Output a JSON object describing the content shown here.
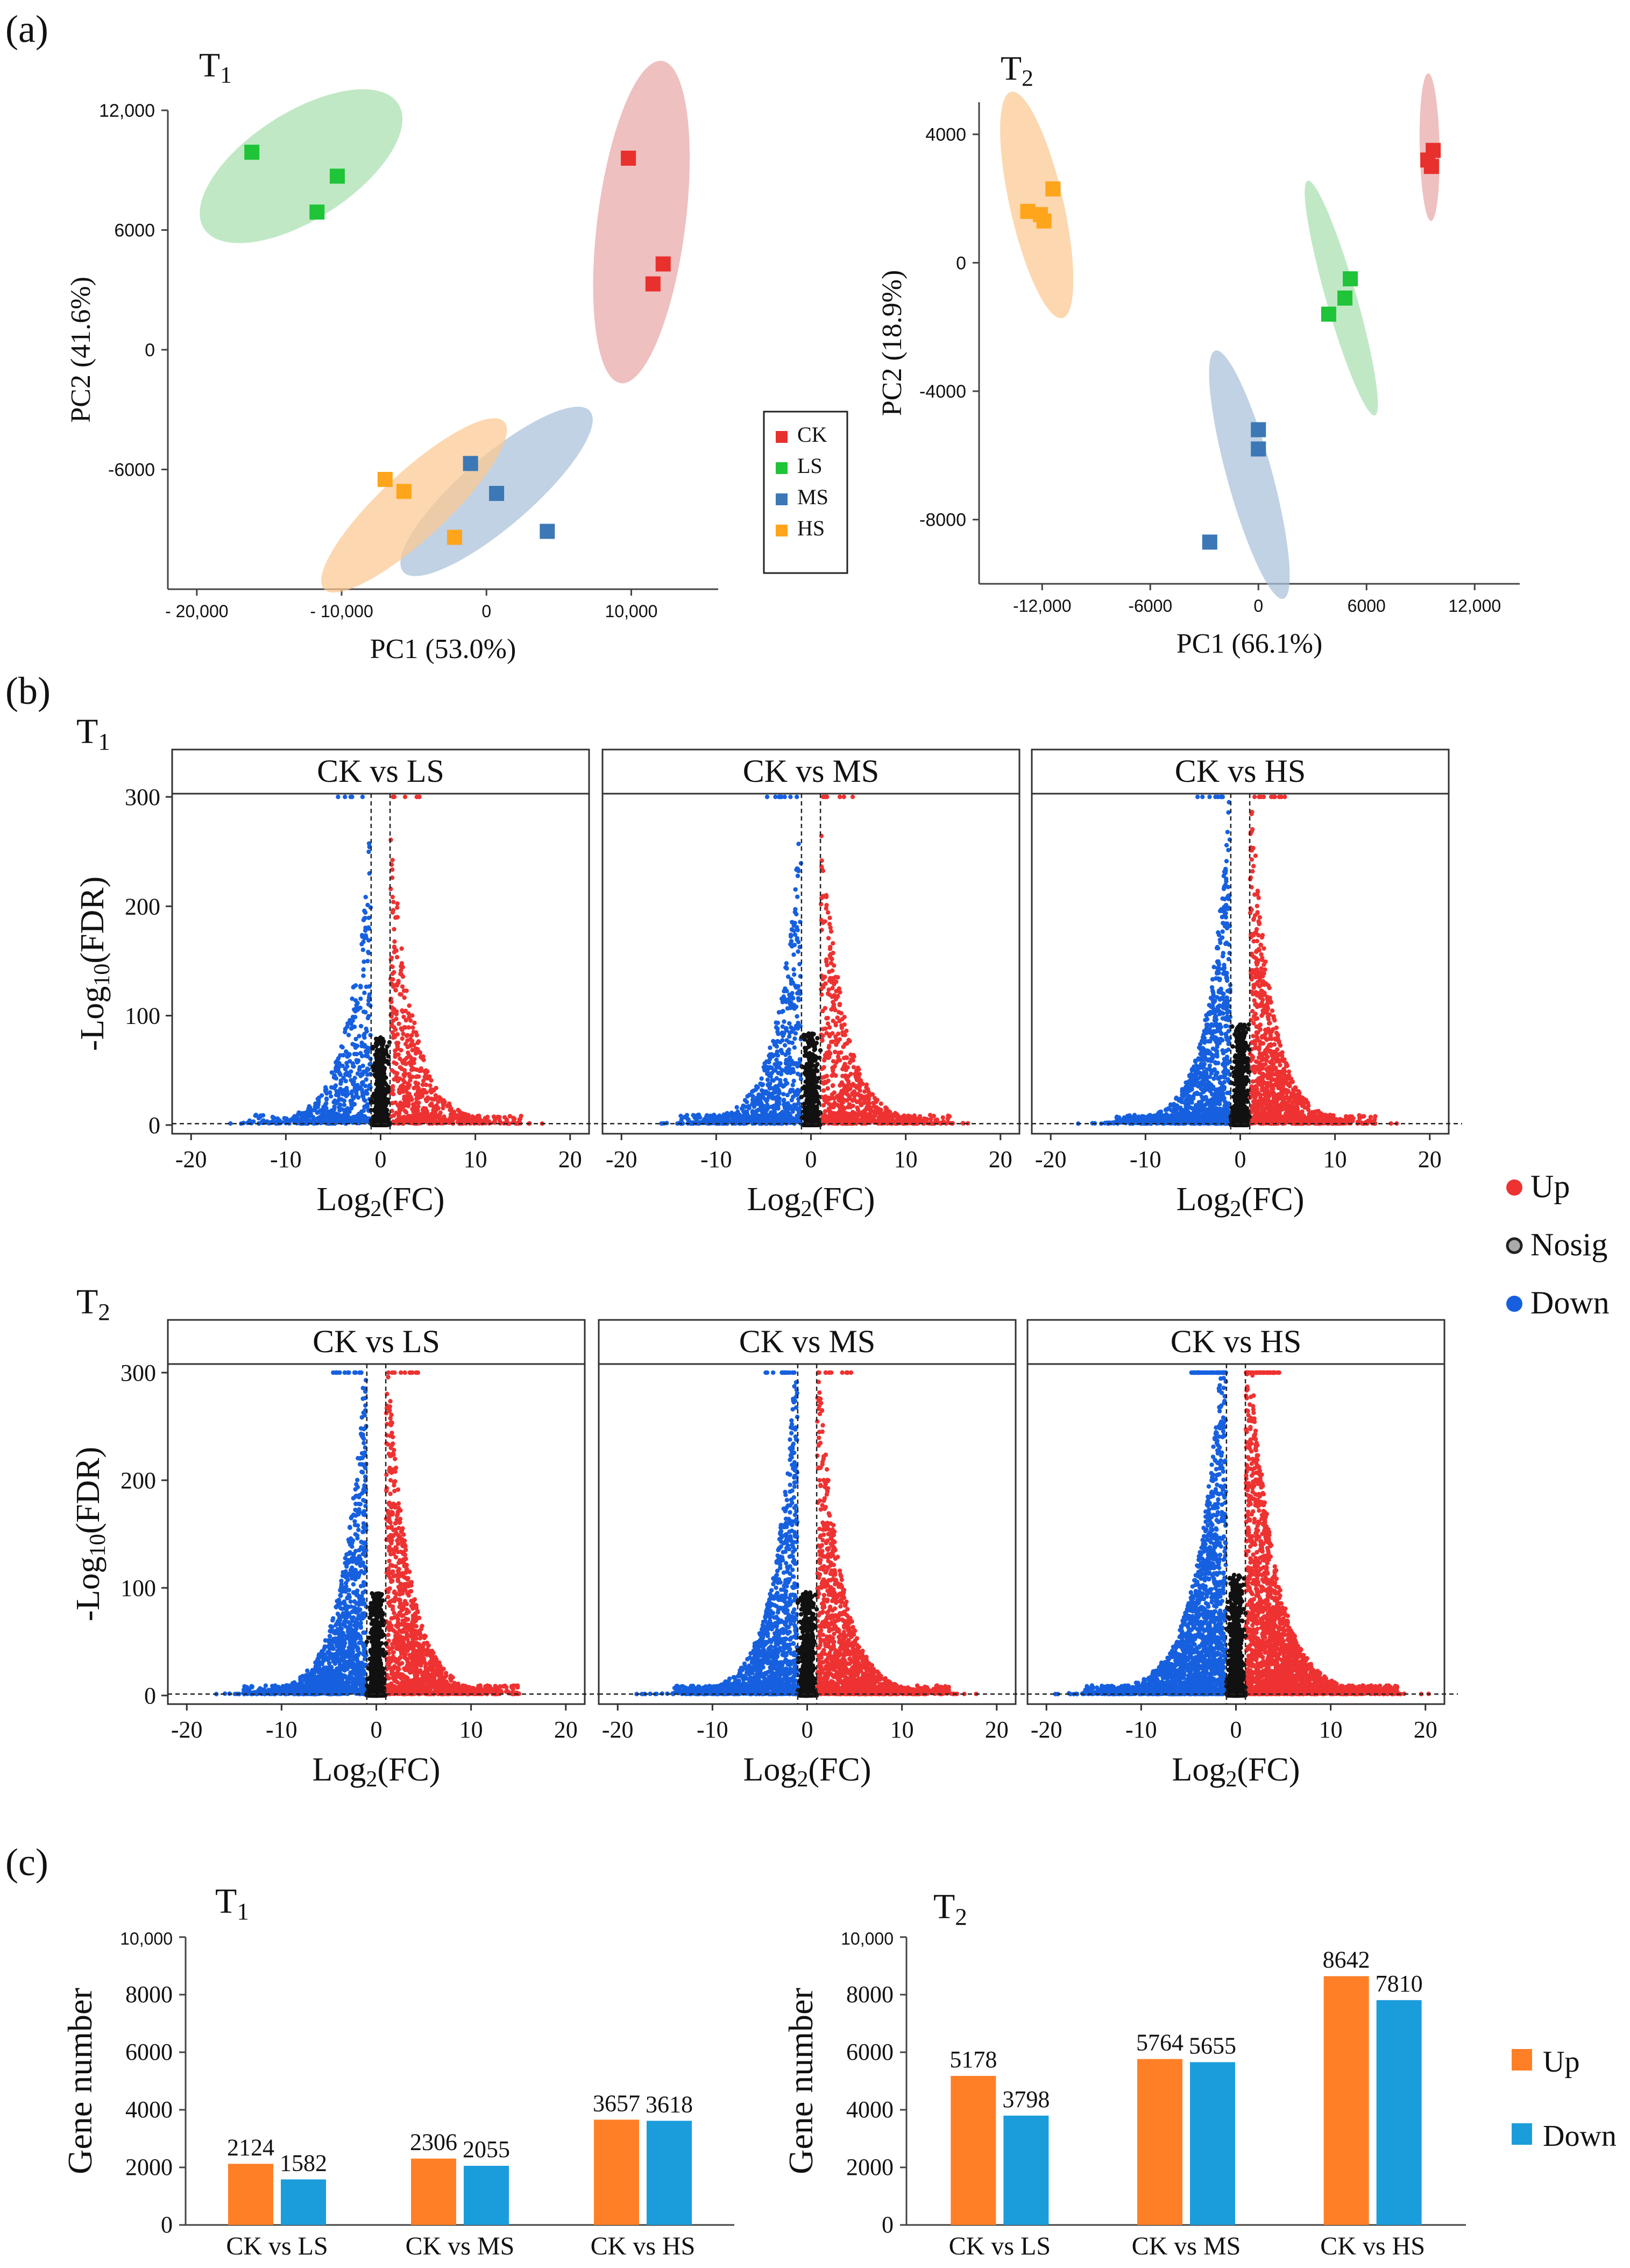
{
  "colors": {
    "CK": "#e8302d",
    "LS": "#1fc438",
    "MS": "#3b78b5",
    "HS": "#ffa51b",
    "ellipse_CK": "#e7a7a6",
    "ellipse_LS": "#a8dfae",
    "ellipse_MS": "#a8c1da",
    "ellipse_HS": "#fbc890",
    "up": "#ee3232",
    "down": "#1660e0",
    "nosig": "#111111",
    "bar_up": "#ff7f27",
    "bar_down": "#1b9ddb"
  },
  "panels": {
    "a": "(a)",
    "b": "(b)",
    "c": "(c)"
  },
  "chart_data": [
    {
      "id": "pca_T1",
      "type": "scatter",
      "title": "T1",
      "title_main": "T",
      "title_sub": "1",
      "xlabel": "PC1 (53.0%)",
      "ylabel": "PC2 (41.6%)",
      "xlim": [
        -22000,
        16000
      ],
      "ylim": [
        -12000,
        12000
      ],
      "xticks": [
        -20000,
        -10000,
        0,
        10000
      ],
      "xtick_labels": [
        "- 20,000",
        "- 10,000",
        "0",
        "10,000"
      ],
      "yticks": [
        12000,
        6000,
        0,
        -6000
      ],
      "ytick_labels": [
        "12,000",
        "6000",
        "0",
        "-6000"
      ],
      "legend": {
        "position": "right",
        "entries": [
          "CK",
          "LS",
          "MS",
          "HS"
        ]
      },
      "series": [
        {
          "name": "CK",
          "x": [
            9800,
            12200,
            11500
          ],
          "y": [
            9600,
            4300,
            3300
          ],
          "ellipse": {
            "cx": 10700,
            "cy": 6400,
            "rx": 8200,
            "ry": 3000,
            "angle": -100
          }
        },
        {
          "name": "LS",
          "x": [
            -16200,
            -10300,
            -11700
          ],
          "y": [
            9900,
            8700,
            6900
          ],
          "ellipse": {
            "cx": -12800,
            "cy": 9200,
            "rx": 7400,
            "ry": 2800,
            "angle": 25
          }
        },
        {
          "name": "MS",
          "x": [
            -1100,
            700,
            4200
          ],
          "y": [
            -5700,
            -7200,
            -9100
          ],
          "ellipse": {
            "cx": 700,
            "cy": -7100,
            "rx": 7600,
            "ry": 1900,
            "angle": 32
          }
        },
        {
          "name": "HS",
          "x": [
            -7000,
            -5700,
            -2200
          ],
          "y": [
            -6500,
            -7100,
            -9400
          ],
          "ellipse": {
            "cx": -5000,
            "cy": -7800,
            "rx": 7500,
            "ry": 1800,
            "angle": 34
          }
        }
      ]
    },
    {
      "id": "pca_T2",
      "type": "scatter",
      "title": "T2",
      "title_main": "T",
      "title_sub": "2",
      "xlabel": "PC1 (66.1%)",
      "ylabel": "PC2 (18.9%)",
      "xlim": [
        -15500,
        14500
      ],
      "ylim": [
        -10000,
        5000
      ],
      "xticks": [
        -12000,
        -6000,
        0,
        6000,
        12000
      ],
      "xtick_labels": [
        "-12,000",
        "-6000",
        "0",
        "6000",
        "12,000"
      ],
      "yticks": [
        4000,
        0,
        -4000,
        -8000
      ],
      "ytick_labels": [
        "4000",
        "0",
        "-4000",
        "-8000"
      ],
      "series": [
        {
          "name": "CK",
          "x": [
            9400,
            9700,
            9600
          ],
          "y": [
            3200,
            3500,
            3000
          ],
          "ellipse": {
            "cx": 9500,
            "cy": 3600,
            "rx": 2300,
            "ry": 550,
            "angle": -88
          }
        },
        {
          "name": "LS",
          "x": [
            3900,
            4800,
            5100
          ],
          "y": [
            -1600,
            -1100,
            -500
          ],
          "ellipse": {
            "cx": 4600,
            "cy": -1100,
            "rx": 4100,
            "ry": 700,
            "angle": -63
          }
        },
        {
          "name": "MS",
          "x": [
            -2700,
            0,
            0
          ],
          "y": [
            -8700,
            -5800,
            -5200
          ],
          "ellipse": {
            "cx": -500,
            "cy": -6600,
            "rx": 4300,
            "ry": 1050,
            "angle": -64
          }
        },
        {
          "name": "HS",
          "x": [
            -12800,
            -12100,
            -11900,
            -11400
          ],
          "y": [
            1600,
            1500,
            1300,
            2300
          ],
          "ellipse": {
            "cx": -12300,
            "cy": 1800,
            "rx": 3800,
            "ry": 1300,
            "angle": -68
          }
        }
      ]
    },
    {
      "id": "volcano_T1",
      "type": "scatter",
      "subtype": "volcano",
      "row_label_main": "T",
      "row_label_sub": "1",
      "xlabel": "Log2(FC)",
      "ylabel": "-Log10(FDR)",
      "xlim": [
        -22,
        22
      ],
      "ylim": [
        -5,
        300
      ],
      "xticks": [
        -20,
        -10,
        0,
        10,
        20
      ],
      "yticks": [
        0,
        100,
        200,
        300
      ],
      "thresholds": {
        "log2fc": [
          -1,
          1
        ],
        "neg_log10_fdr": 1.3
      },
      "legend": {
        "position": "right",
        "entries": [
          "Up",
          "Nosig",
          "Down"
        ]
      },
      "facets": [
        {
          "title": "CK vs LS",
          "seed": 11,
          "n_up": 550,
          "n_down": 500,
          "n_nosig": 700,
          "spread": 1.0,
          "yscale": 1.0,
          "saturated_up": 6,
          "saturated_down": 5
        },
        {
          "title": "CK vs MS",
          "seed": 23,
          "n_up": 650,
          "n_down": 650,
          "n_nosig": 700,
          "spread": 1.0,
          "yscale": 1.05,
          "saturated_up": 8,
          "saturated_down": 8
        },
        {
          "title": "CK vs HS",
          "seed": 37,
          "n_up": 1000,
          "n_down": 950,
          "n_nosig": 800,
          "spread": 0.95,
          "yscale": 1.15,
          "saturated_up": 10,
          "saturated_down": 8
        }
      ]
    },
    {
      "id": "volcano_T2",
      "type": "scatter",
      "subtype": "volcano",
      "row_label_main": "T",
      "row_label_sub": "2",
      "xlabel": "Log2(FC)",
      "ylabel": "-Log10(FDR)",
      "xlim": [
        -22,
        22
      ],
      "ylim": [
        -5,
        305
      ],
      "xticks": [
        -20,
        -10,
        0,
        10,
        20
      ],
      "yticks": [
        0,
        100,
        200,
        300
      ],
      "thresholds": {
        "log2fc": [
          -1,
          1
        ],
        "neg_log10_fdr": 1.3
      },
      "facets": [
        {
          "title": "CK vs LS",
          "seed": 51,
          "n_up": 1100,
          "n_down": 1200,
          "n_nosig": 900,
          "spread": 1.0,
          "yscale": 1.2,
          "saturated_up": 12,
          "saturated_down": 14
        },
        {
          "title": "CK vs MS",
          "seed": 67,
          "n_up": 1200,
          "n_down": 1200,
          "n_nosig": 900,
          "spread": 1.0,
          "yscale": 1.2,
          "saturated_up": 10,
          "saturated_down": 12
        },
        {
          "title": "CK vs HS",
          "seed": 83,
          "n_up": 1900,
          "n_down": 1800,
          "n_nosig": 1000,
          "spread": 1.15,
          "yscale": 1.4,
          "saturated_up": 40,
          "saturated_down": 40
        }
      ]
    },
    {
      "id": "bar_T1",
      "type": "bar",
      "title": "T1",
      "title_main": "T",
      "title_sub": "1",
      "ylabel": "Gene number",
      "ylim": [
        0,
        10000
      ],
      "yticks": [
        0,
        2000,
        4000,
        6000,
        8000,
        10000
      ],
      "ytick_labels": [
        "0",
        "2000",
        "4000",
        "6000",
        "8000",
        "10,000"
      ],
      "categories": [
        "CK vs LS",
        "CK vs MS",
        "CK vs HS"
      ],
      "series": [
        {
          "name": "Up",
          "values": [
            2124,
            2306,
            3657
          ]
        },
        {
          "name": "Down",
          "values": [
            1582,
            2055,
            3618
          ]
        }
      ]
    },
    {
      "id": "bar_T2",
      "type": "bar",
      "title": "T2",
      "title_main": "T",
      "title_sub": "2",
      "ylabel": "Gene number",
      "ylim": [
        0,
        10000
      ],
      "yticks": [
        0,
        2000,
        4000,
        6000,
        8000,
        10000
      ],
      "ytick_labels": [
        "0",
        "2000",
        "4000",
        "6000",
        "8000",
        "10,000"
      ],
      "categories": [
        "CK vs LS",
        "CK vs MS",
        "CK vs HS"
      ],
      "legend": {
        "position": "right",
        "entries": [
          "Up",
          "Down"
        ]
      },
      "series": [
        {
          "name": "Up",
          "values": [
            5178,
            5764,
            8642
          ]
        },
        {
          "name": "Down",
          "values": [
            3798,
            5655,
            7810
          ]
        }
      ]
    }
  ]
}
